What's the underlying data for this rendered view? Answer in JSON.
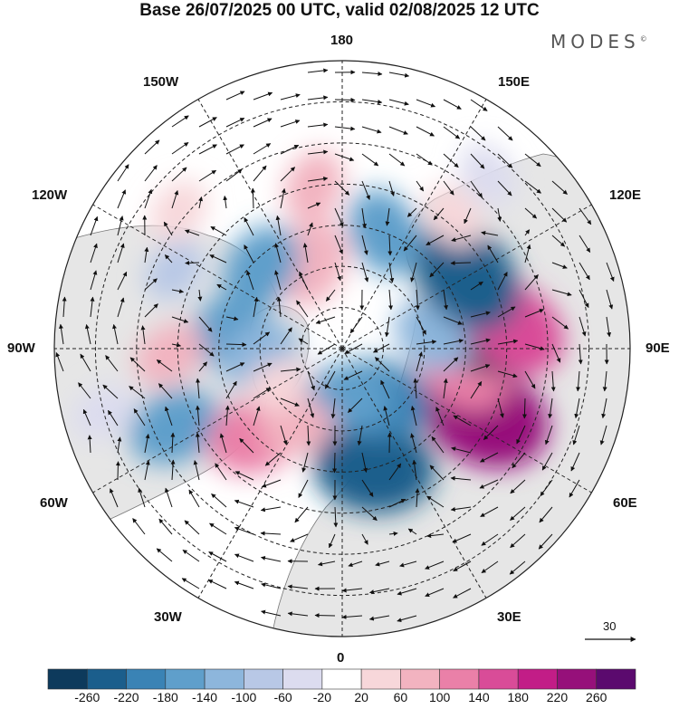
{
  "title": "Base 26/07/2025 00 UTC, valid 02/08/2025 12 UTC",
  "logo": {
    "text": "MODES",
    "mark": "©"
  },
  "longitude_labels": {
    "top": "180",
    "bottom": "0",
    "left": "90W",
    "right": "90E",
    "upper_left_1": "150W",
    "upper_left_2": "120W",
    "upper_right_1": "150E",
    "upper_right_2": "120E",
    "lower_left_1": "60W",
    "lower_left_2": "30W",
    "lower_right_1": "60E",
    "lower_right_2": "30E"
  },
  "reference_vector": {
    "value": "30"
  },
  "colorbar": {
    "colors": [
      "#0d3a5c",
      "#1b5e8c",
      "#3a83b5",
      "#5f9fcb",
      "#8db6dc",
      "#b8c8e6",
      "#dcdcef",
      "#ffffff",
      "#f7d7da",
      "#f2b3c0",
      "#ea80a8",
      "#d94c98",
      "#c21d87",
      "#96107a",
      "#5b0a6e"
    ],
    "ticks": [
      "-260",
      "-220",
      "-180",
      "-140",
      "-100",
      "-60",
      "-20",
      "20",
      "60",
      "100",
      "140",
      "180",
      "220",
      "260"
    ]
  },
  "anomalies": [
    {
      "lon": 65,
      "lat": 52,
      "value": 230,
      "color": "#96107a"
    },
    {
      "lon": 80,
      "lat": 60,
      "value": 140,
      "color": "#ea80a8"
    },
    {
      "lon": 102,
      "lat": 55,
      "value": -230,
      "color": "#0d3a5c"
    },
    {
      "lon": 98,
      "lat": 68,
      "value": -100,
      "color": "#8db6dc"
    },
    {
      "lon": 15,
      "lat": 60,
      "value": -200,
      "color": "#1b5e8c"
    },
    {
      "lon": 35,
      "lat": 75,
      "value": -160,
      "color": "#3a83b5"
    },
    {
      "lon": 5,
      "lat": 78,
      "value": -120,
      "color": "#5f9fcb"
    },
    {
      "lon": 97,
      "lat": 48,
      "value": 170,
      "color": "#d94c98"
    },
    {
      "lon": 120,
      "lat": 55,
      "value": -200,
      "color": "#1b5e8c"
    },
    {
      "lon": 160,
      "lat": 60,
      "value": -120,
      "color": "#5f9fcb"
    },
    {
      "lon": 140,
      "lat": 48,
      "value": 60,
      "color": "#f7d7da"
    },
    {
      "lon": -160,
      "lat": 68,
      "value": 120,
      "color": "#f2b3c0"
    },
    {
      "lon": -135,
      "lat": 62,
      "value": -120,
      "color": "#5f9fcb"
    },
    {
      "lon": -170,
      "lat": 50,
      "value": 80,
      "color": "#f2b3c0"
    },
    {
      "lon": -100,
      "lat": 62,
      "value": -110,
      "color": "#5f9fcb"
    },
    {
      "lon": -88,
      "lat": 48,
      "value": 80,
      "color": "#f2b3c0"
    },
    {
      "lon": -85,
      "lat": 70,
      "value": -100,
      "color": "#8db6dc"
    },
    {
      "lon": -65,
      "lat": 45,
      "value": -130,
      "color": "#5f9fcb"
    },
    {
      "lon": -45,
      "lat": 60,
      "value": 140,
      "color": "#ea80a8"
    },
    {
      "lon": -30,
      "lat": 68,
      "value": 80,
      "color": "#f2b3c0"
    },
    {
      "lon": -60,
      "lat": 72,
      "value": 60,
      "color": "#f7d7da"
    },
    {
      "lon": -115,
      "lat": 45,
      "value": -60,
      "color": "#b8c8e6"
    },
    {
      "lon": -75,
      "lat": 30,
      "value": -60,
      "color": "#dcdcef"
    },
    {
      "lon": 140,
      "lat": 35,
      "value": -60,
      "color": "#dcdcef"
    },
    {
      "lon": -130,
      "lat": 38,
      "value": 60,
      "color": "#f7d7da"
    }
  ]
}
